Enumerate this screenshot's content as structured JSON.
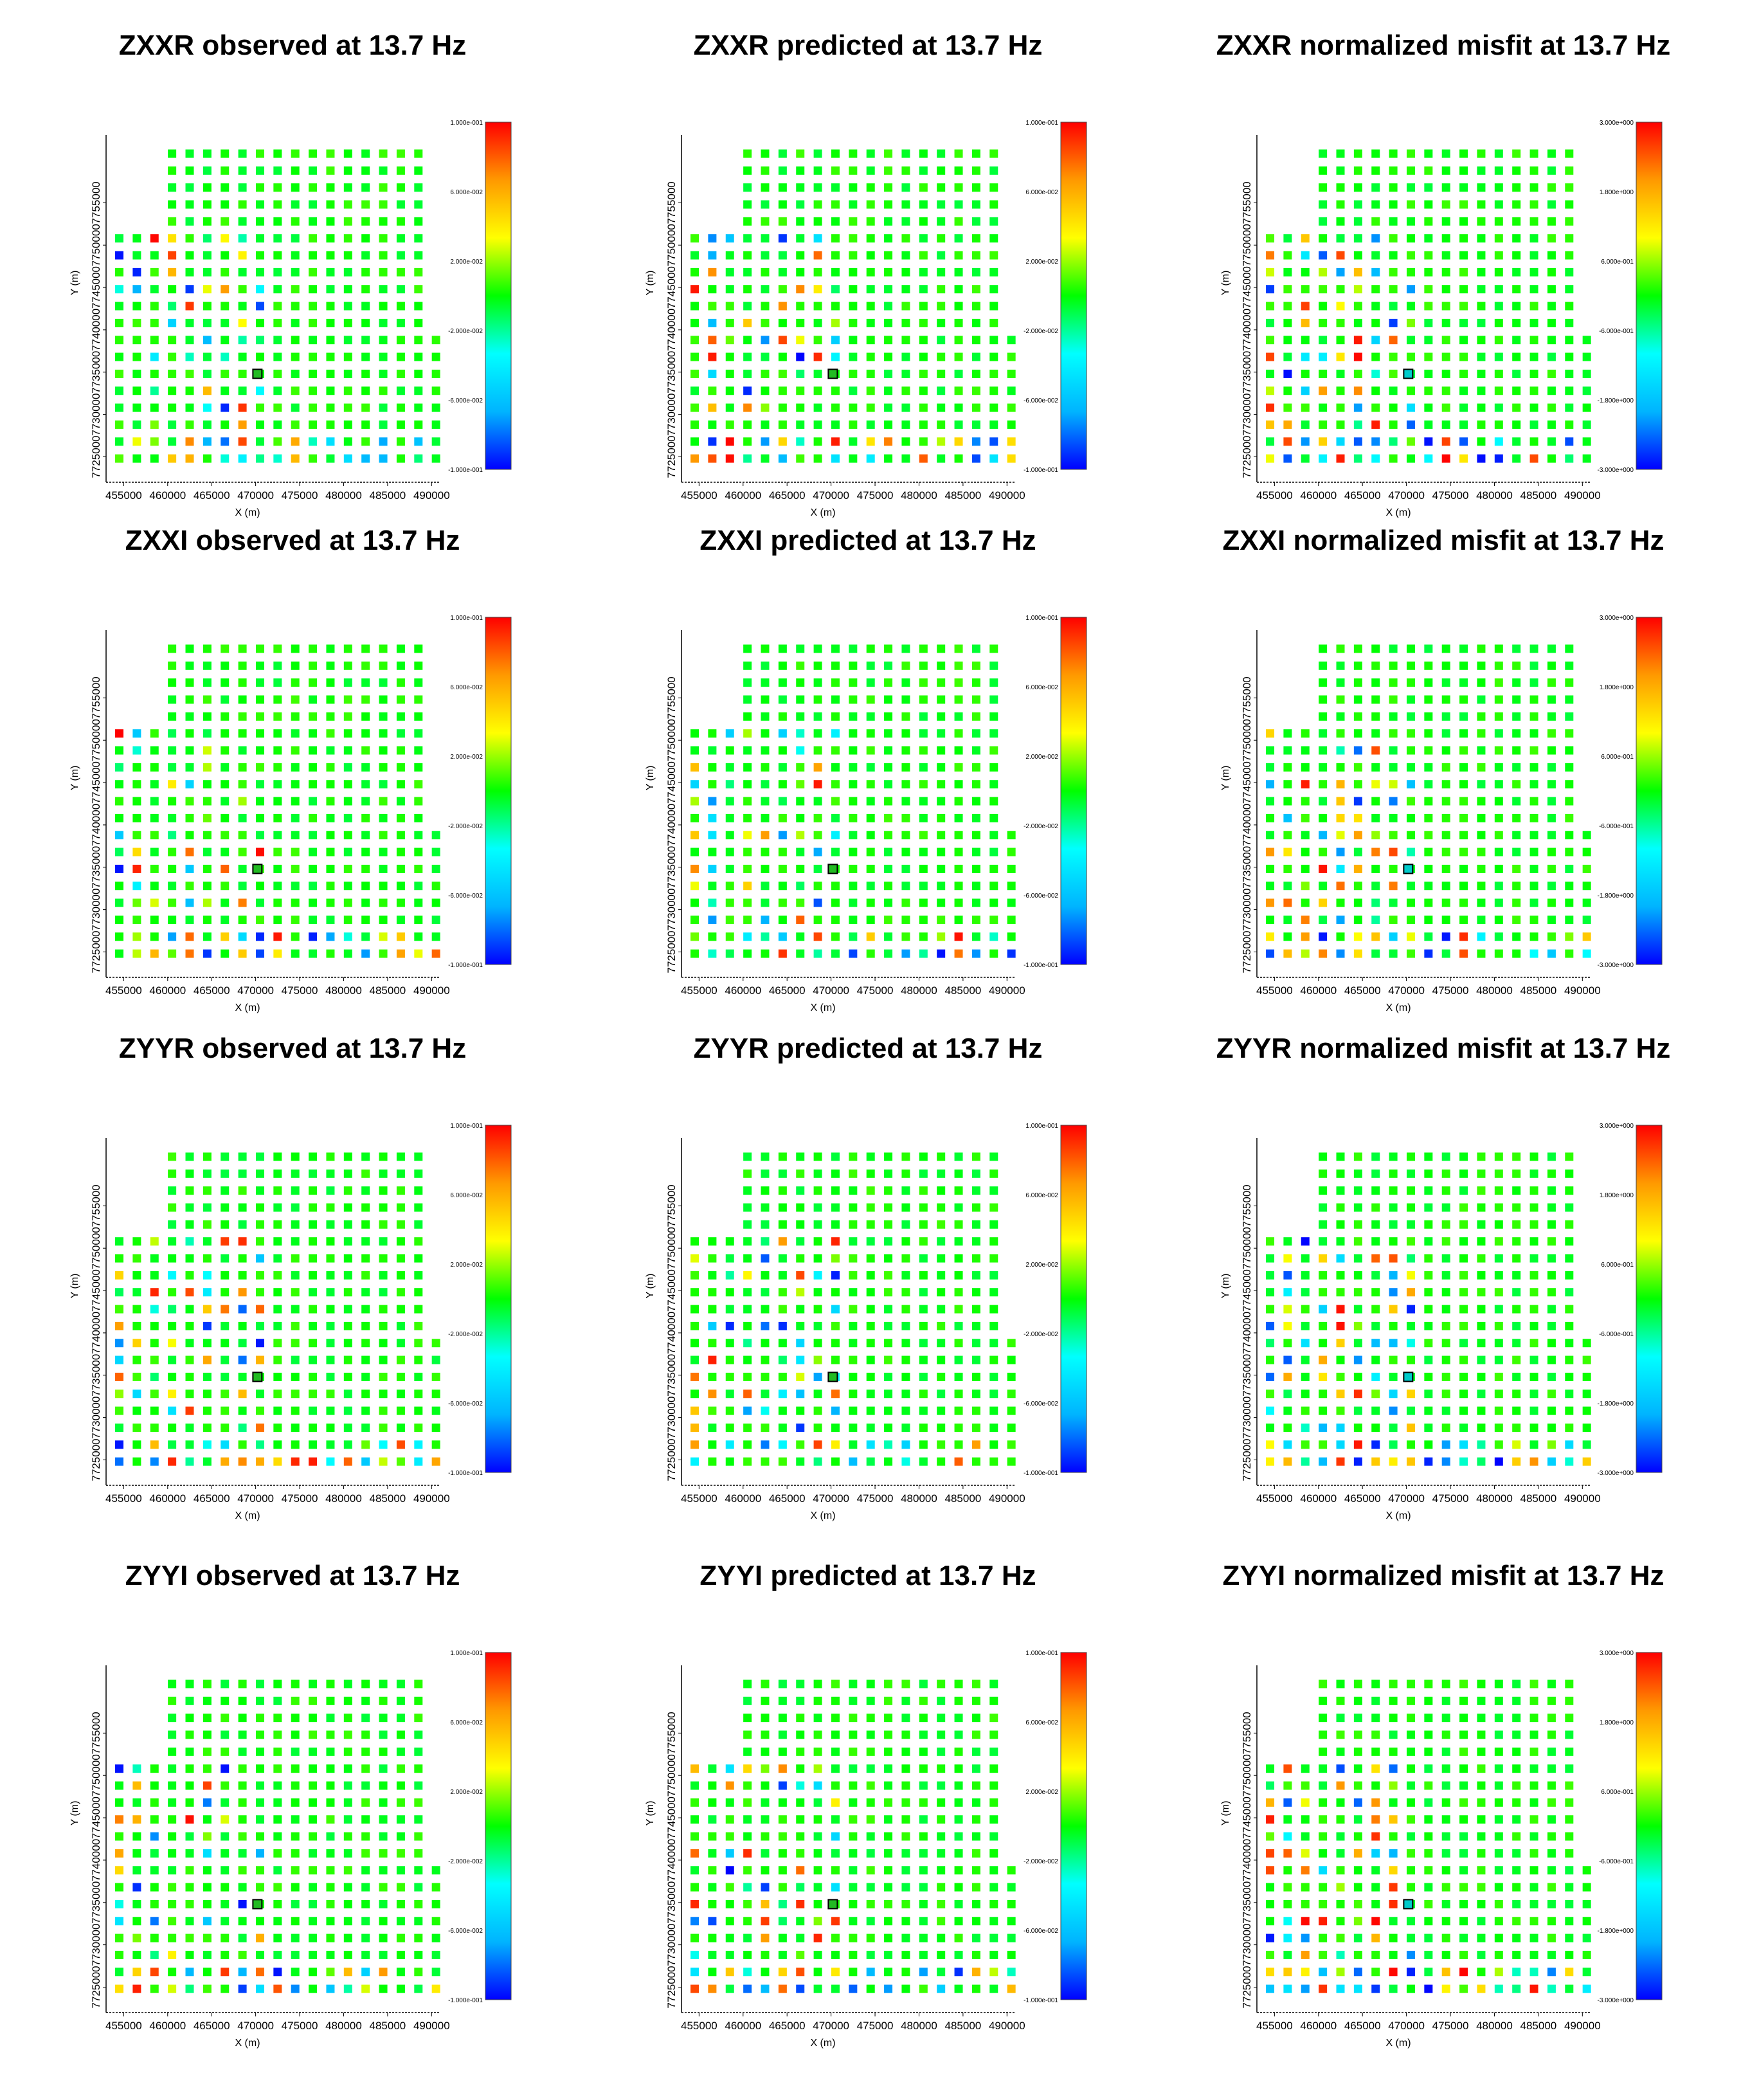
{
  "chart_data": {
    "type": "scatter",
    "frequency_hz": 13.7,
    "xlabel": "X (m)",
    "ylabel": "Y (m)",
    "x_ticks": [
      "455000",
      "460000",
      "465000",
      "470000",
      "475000",
      "480000",
      "485000",
      "490000"
    ],
    "y_ticks": [
      "7725000",
      "7730000",
      "7735000",
      "7740000",
      "7745000",
      "7750000",
      "7755000"
    ],
    "xlim": [
      453000,
      491000
    ],
    "ylim": [
      7722000,
      7763000
    ],
    "colorscale": [
      "#0000ff",
      "#00b4ff",
      "#00ffff",
      "#00ff00",
      "#ffff00",
      "#ff9900",
      "#ff0000"
    ],
    "observed_predicted_colorbar": {
      "range": [
        -0.1,
        0.1
      ],
      "labels": [
        "1.000e-001",
        "6.000e-002",
        "2.000e-002",
        "-2.000e-002",
        "-6.000e-002",
        "-1.000e-001"
      ]
    },
    "misfit_colorbar": {
      "range": [
        -3.0,
        3.0
      ],
      "labels": [
        "3.000e+000",
        "1.800e+000",
        "6.000e-001",
        "-6.000e-001",
        "-1.800e+000",
        "-3.000e+000"
      ]
    },
    "panels": [
      {
        "title": "ZXXR observed at 13.7 Hz",
        "component": "ZXXR",
        "kind": "observed"
      },
      {
        "title": "ZXXR predicted at 13.7 Hz",
        "component": "ZXXR",
        "kind": "predicted"
      },
      {
        "title": "ZXXR normalized misfit at 13.7 Hz",
        "component": "ZXXR",
        "kind": "misfit"
      },
      {
        "title": "ZXXI observed at 13.7 Hz",
        "component": "ZXXI",
        "kind": "observed"
      },
      {
        "title": "ZXXI predicted at 13.7 Hz",
        "component": "ZXXI",
        "kind": "predicted"
      },
      {
        "title": "ZXXI normalized misfit at 13.7 Hz",
        "component": "ZXXI",
        "kind": "misfit"
      },
      {
        "title": "ZYYR observed at 13.7 Hz",
        "component": "ZYYR",
        "kind": "observed"
      },
      {
        "title": "ZYYR predicted at 13.7 Hz",
        "component": "ZYYR",
        "kind": "predicted"
      },
      {
        "title": "ZYYR normalized misfit at 13.7 Hz",
        "component": "ZYYR",
        "kind": "misfit"
      },
      {
        "title": "ZYYI observed at 13.7 Hz",
        "component": "ZYYI",
        "kind": "observed"
      },
      {
        "title": "ZYYI predicted at 13.7 Hz",
        "component": "ZYYI",
        "kind": "predicted"
      },
      {
        "title": "ZYYI normalized misfit at 13.7 Hz",
        "component": "ZYYI",
        "kind": "misfit"
      }
    ]
  }
}
